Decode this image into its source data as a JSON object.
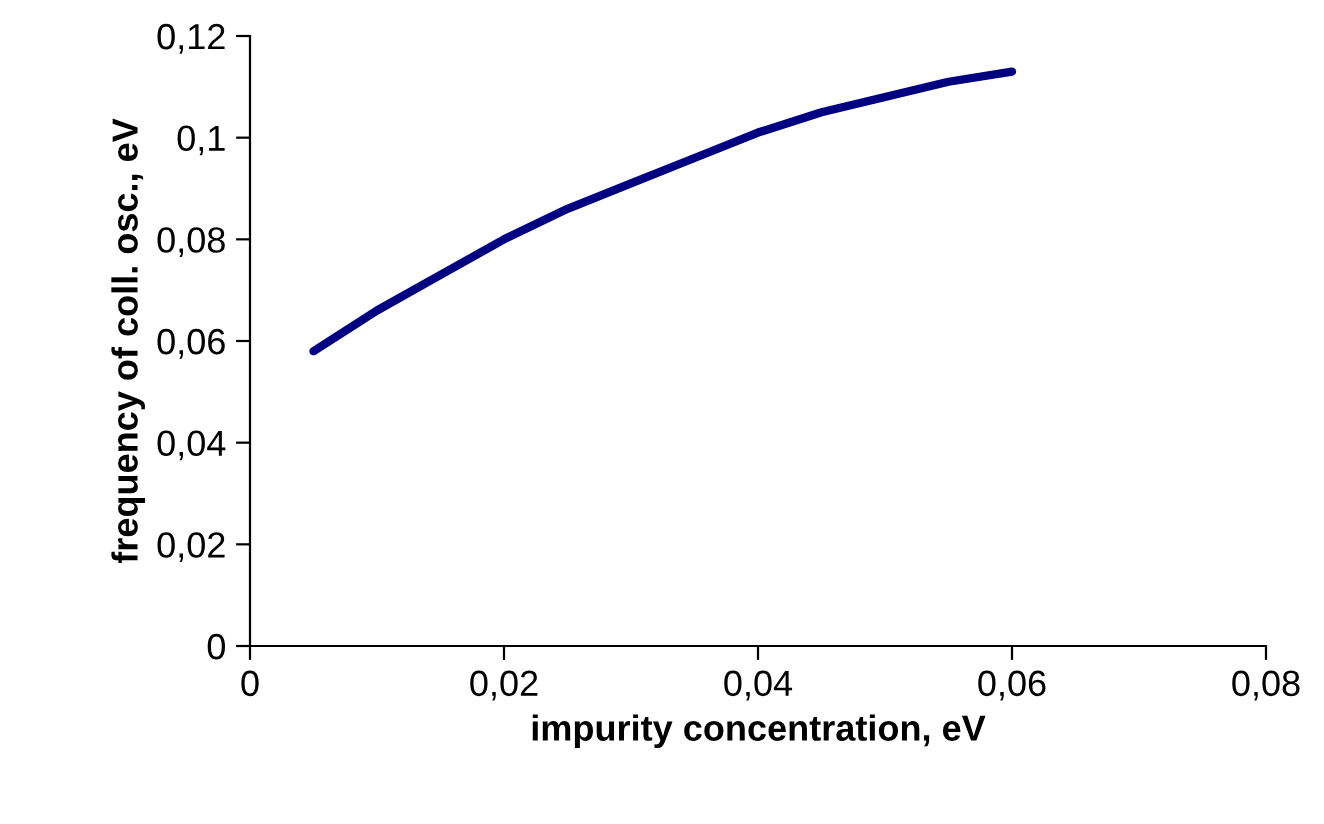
{
  "chart_data": {
    "type": "line",
    "xlabel": "impurity concentration, eV",
    "ylabel": "frequency of coll. osc., eV",
    "series": [
      {
        "color": "#000080",
        "x": [
          0.005,
          0.01,
          0.015,
          0.02,
          0.025,
          0.03,
          0.035,
          0.04,
          0.045,
          0.05,
          0.055,
          0.06
        ],
        "values": [
          0.058,
          0.066,
          0.073,
          0.08,
          0.086,
          0.091,
          0.096,
          0.101,
          0.105,
          0.108,
          0.111,
          0.113
        ]
      }
    ],
    "xlim": [
      0,
      0.08
    ],
    "ylim": [
      0,
      0.12
    ],
    "xticks": [
      0,
      {
        "value": 0.02,
        "label": "0,02"
      },
      {
        "value": 0.04,
        "label": "0,04"
      },
      {
        "value": 0.06,
        "label": "0,06"
      },
      {
        "value": 0.08,
        "label": "0,08"
      }
    ],
    "yticks": [
      0,
      {
        "value": 0.02,
        "label": "0,02"
      },
      {
        "value": 0.04,
        "label": "0,04"
      },
      {
        "value": 0.06,
        "label": "0,06"
      },
      {
        "value": 0.08,
        "label": "0,08"
      },
      {
        "value": 0.1,
        "label": "0,1"
      },
      {
        "value": 0.12,
        "label": "0,12"
      }
    ],
    "grid": false,
    "marker": "none",
    "line_style": "solid"
  }
}
